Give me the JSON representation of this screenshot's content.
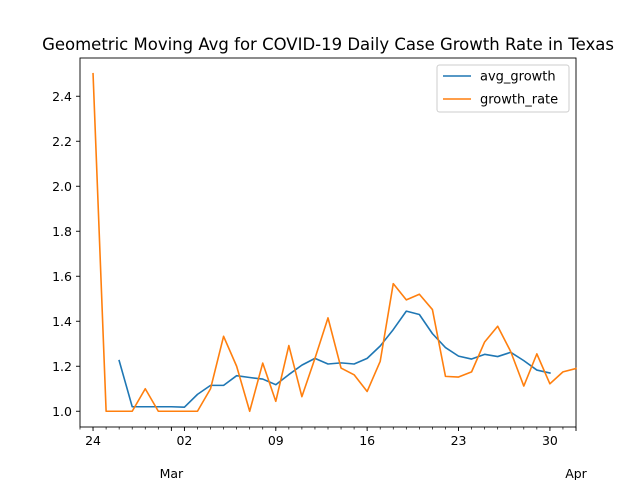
{
  "chart_data": {
    "type": "line",
    "title": "Geometric Moving Avg for COVID-19 Daily Case Growth Rate in Texas",
    "xlabel": "",
    "ylabel": "",
    "x": [
      "2020-02-24",
      "2020-02-25",
      "2020-02-26",
      "2020-02-27",
      "2020-02-28",
      "2020-02-29",
      "2020-03-01",
      "2020-03-02",
      "2020-03-03",
      "2020-03-04",
      "2020-03-05",
      "2020-03-06",
      "2020-03-07",
      "2020-03-08",
      "2020-03-09",
      "2020-03-10",
      "2020-03-11",
      "2020-03-12",
      "2020-03-13",
      "2020-03-14",
      "2020-03-15",
      "2020-03-16",
      "2020-03-17",
      "2020-03-18",
      "2020-03-19",
      "2020-03-20",
      "2020-03-21",
      "2020-03-22",
      "2020-03-23",
      "2020-03-24",
      "2020-03-25",
      "2020-03-26",
      "2020-03-27",
      "2020-03-28",
      "2020-03-29",
      "2020-03-30",
      "2020-03-31",
      "2020-04-01"
    ],
    "x_ticks": [
      {
        "date": "2020-02-24",
        "label": "24"
      },
      {
        "date": "2020-03-02",
        "label": "02"
      },
      {
        "date": "2020-03-09",
        "label": "09"
      },
      {
        "date": "2020-03-16",
        "label": "16"
      },
      {
        "date": "2020-03-23",
        "label": "23"
      },
      {
        "date": "2020-03-30",
        "label": "30"
      }
    ],
    "x_major_labels": [
      {
        "date": "2020-03-01",
        "label": "Mar"
      },
      {
        "date": "2020-04-01",
        "label": "Apr"
      }
    ],
    "xlim": [
      "2020-02-23",
      "2020-04-01"
    ],
    "ylim": [
      0.93,
      2.57
    ],
    "yticks": [
      1.0,
      1.2,
      1.4,
      1.6,
      1.8,
      2.0,
      2.2,
      2.4
    ],
    "ytick_labels": [
      "1.0",
      "1.2",
      "1.4",
      "1.6",
      "1.8",
      "2.0",
      "2.2",
      "2.4"
    ],
    "grid": false,
    "legend_position": "top-right",
    "series": [
      {
        "name": "avg_growth",
        "color": "#1f77b4",
        "values": [
          null,
          null,
          1.225,
          1.02,
          1.02,
          1.02,
          1.02,
          1.018,
          1.075,
          1.115,
          1.115,
          1.158,
          1.15,
          1.143,
          1.118,
          1.163,
          1.205,
          1.235,
          1.21,
          1.215,
          1.21,
          1.235,
          1.29,
          1.363,
          1.445,
          1.43,
          1.345,
          1.283,
          1.245,
          1.232,
          1.253,
          1.243,
          1.262,
          1.225,
          1.183,
          1.17,
          null,
          null
        ]
      },
      {
        "name": "growth_rate",
        "color": "#ff7f0e",
        "values": [
          2.5,
          1.0,
          1.0,
          1.0,
          1.1,
          1.0,
          1.0,
          1.0,
          1.0,
          1.1,
          1.333,
          1.2,
          1.0,
          1.214,
          1.044,
          1.292,
          1.065,
          1.235,
          1.415,
          1.192,
          1.162,
          1.088,
          1.222,
          1.567,
          1.495,
          1.52,
          1.452,
          1.155,
          1.152,
          1.175,
          1.308,
          1.378,
          1.265,
          1.112,
          1.255,
          1.122,
          1.175,
          1.19
        ]
      }
    ]
  }
}
